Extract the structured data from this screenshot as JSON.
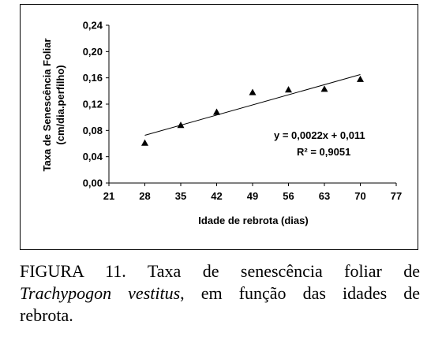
{
  "chart_data": {
    "type": "scatter",
    "xlabel": "Idade de rebrota (dias)",
    "ylabel_line1": "Taxa de Senescência Foliar",
    "ylabel_line2": "(cm/dia.perfilho)",
    "xlim": [
      21,
      77
    ],
    "ylim": [
      0,
      0.24
    ],
    "xticks": [
      "21",
      "28",
      "35",
      "42",
      "49",
      "56",
      "63",
      "70",
      "77"
    ],
    "yticks": [
      "0,00",
      "0,04",
      "0,08",
      "0,12",
      "0,16",
      "0,20",
      "0,24"
    ],
    "points": [
      {
        "x": 28,
        "y": 0.061
      },
      {
        "x": 35,
        "y": 0.088
      },
      {
        "x": 42,
        "y": 0.108
      },
      {
        "x": 49,
        "y": 0.138
      },
      {
        "x": 56,
        "y": 0.142
      },
      {
        "x": 63,
        "y": 0.143
      },
      {
        "x": 70,
        "y": 0.158
      }
    ],
    "trendline": {
      "x_start": 28,
      "x_end": 70,
      "slope": 0.0022,
      "intercept": 0.011
    },
    "equation": "y = 0,0022x + 0,011",
    "r_squared": "R² = 0,9051",
    "marker": "triangle",
    "color": "#000000"
  },
  "caption": {
    "line1": "FIGURA 11. Taxa de senescência foliar de",
    "species": "Trachypogon vestitus",
    "line2_rest": ", em função das idades de",
    "line3": "rebrota."
  }
}
